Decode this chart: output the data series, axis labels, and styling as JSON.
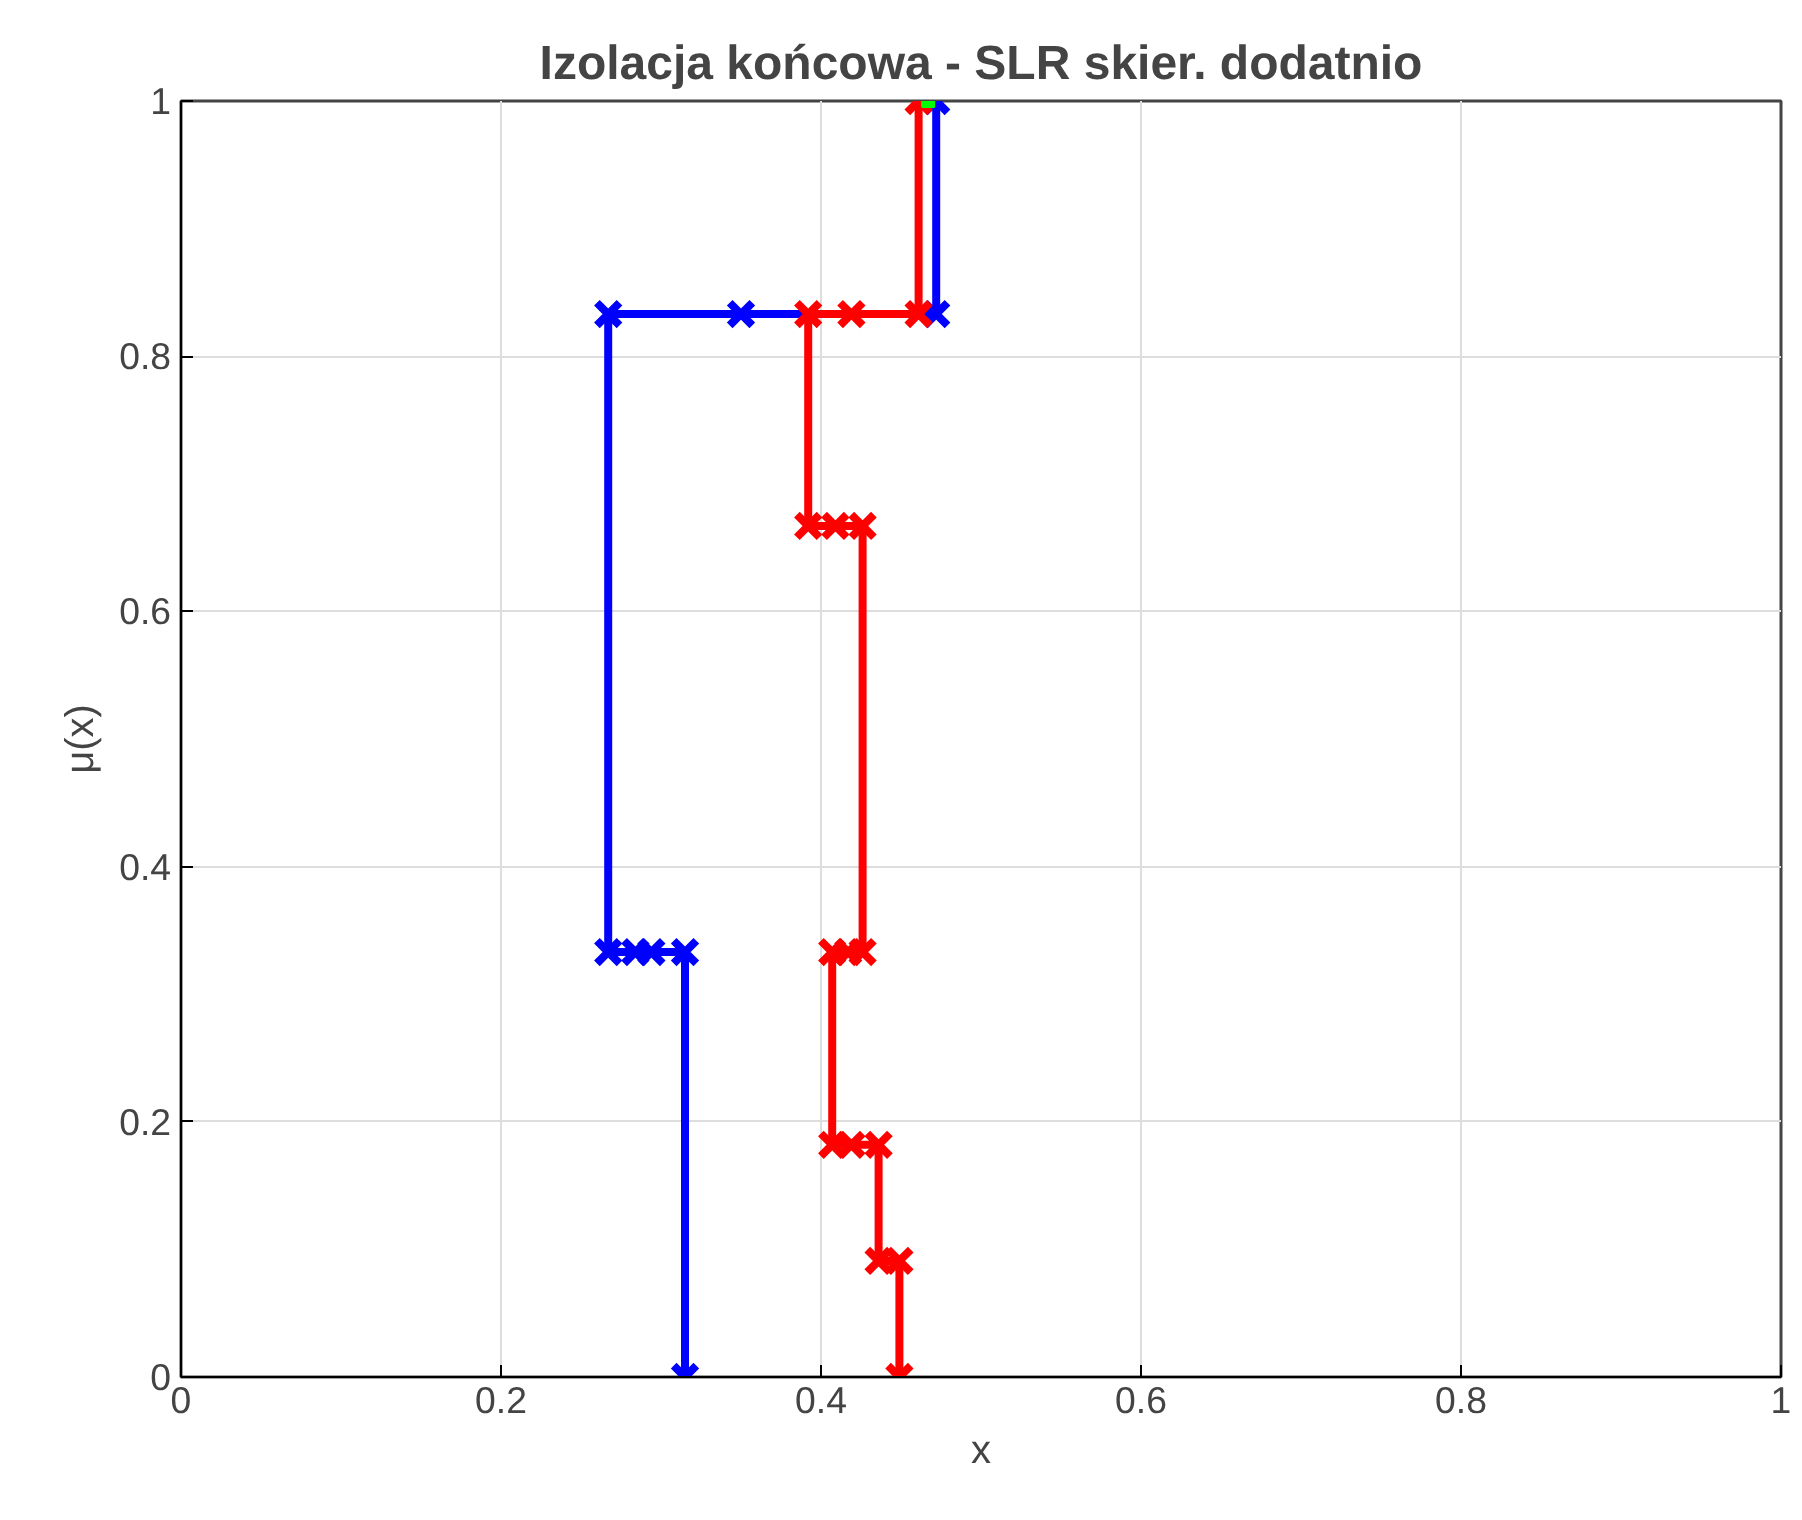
{
  "chart_data": {
    "type": "line",
    "title": "Izolacja końcowa - SLR skier. dodatnio",
    "xlabel": "x",
    "ylabel": "μ(x)",
    "xlim": [
      0,
      1
    ],
    "ylim": [
      0,
      1
    ],
    "xticks": [
      0,
      0.2,
      0.4,
      0.6,
      0.8,
      1
    ],
    "yticks": [
      0,
      0.2,
      0.4,
      0.6,
      0.8,
      1
    ],
    "grid": true,
    "marker": "cross",
    "series": [
      {
        "color": "#0000ff",
        "x": [
          0.315,
          0.315,
          0.294,
          0.284,
          0.267,
          0.267,
          0.35,
          0.472,
          0.472
        ],
        "values": [
          0,
          0.333,
          0.333,
          0.333,
          0.333,
          0.833,
          0.833,
          0.833,
          1
        ]
      },
      {
        "color": "#ff0000",
        "x": [
          0.449,
          0.449,
          0.436,
          0.436,
          0.419,
          0.407,
          0.407,
          0.417,
          0.426,
          0.426,
          0.409,
          0.392,
          0.392,
          0.419,
          0.461,
          0.461
        ],
        "values": [
          0,
          0.091,
          0.091,
          0.182,
          0.182,
          0.182,
          0.333,
          0.333,
          0.333,
          0.667,
          0.667,
          0.667,
          0.833,
          0.833,
          0.833,
          1
        ]
      },
      {
        "type": "scatter",
        "marker": "square",
        "color": "#00ff00",
        "x": [
          0.467
        ],
        "values": [
          1
        ]
      }
    ]
  }
}
